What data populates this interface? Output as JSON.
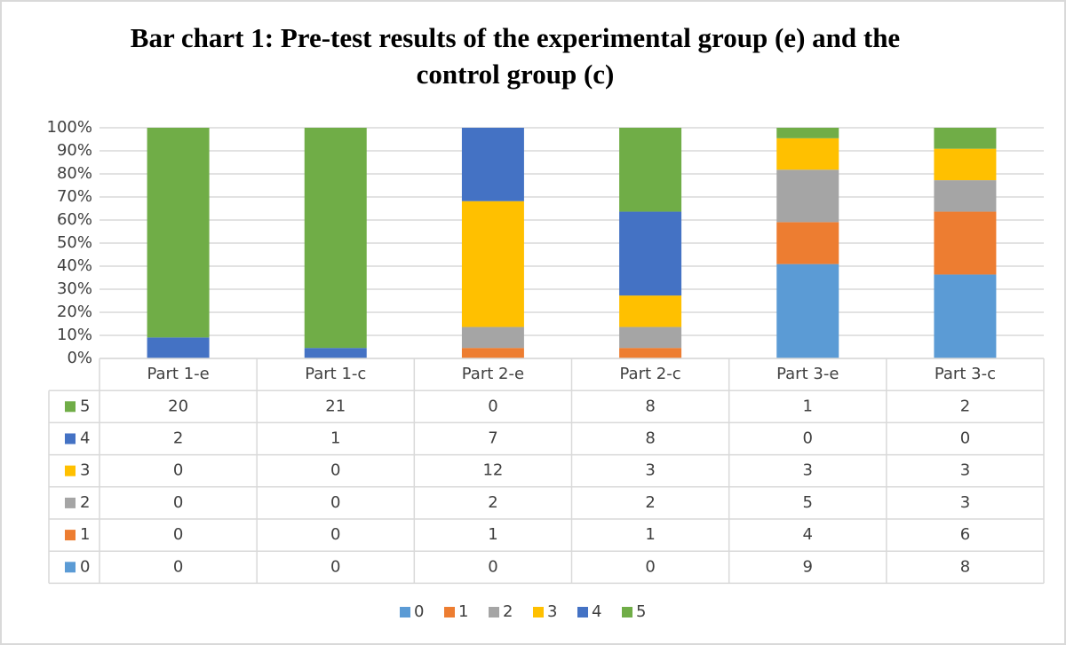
{
  "chart_data": {
    "type": "bar",
    "stacked": "percent",
    "title": "Bar chart 1: Pre-test results of the experimental group (e) and the control group (c)",
    "categories": [
      "Part 1-e",
      "Part 1-c",
      "Part 2-e",
      "Part 2-c",
      "Part 3-e",
      "Part 3-c"
    ],
    "series": [
      {
        "name": "0",
        "color": "#5b9bd5",
        "values": [
          0,
          0,
          0,
          0,
          9,
          8
        ]
      },
      {
        "name": "1",
        "color": "#ed7d31",
        "values": [
          0,
          0,
          1,
          1,
          4,
          6
        ]
      },
      {
        "name": "2",
        "color": "#a5a5a5",
        "values": [
          0,
          0,
          2,
          2,
          5,
          3
        ]
      },
      {
        "name": "3",
        "color": "#ffc000",
        "values": [
          0,
          0,
          12,
          3,
          3,
          3
        ]
      },
      {
        "name": "4",
        "color": "#4472c4",
        "values": [
          2,
          1,
          7,
          8,
          0,
          0
        ]
      },
      {
        "name": "5",
        "color": "#70ad47",
        "values": [
          20,
          21,
          0,
          8,
          1,
          2
        ]
      }
    ],
    "ylim": [
      0,
      100
    ],
    "yticks": [
      {
        "value": 0,
        "label": "0%"
      },
      {
        "value": 10,
        "label": "10%"
      },
      {
        "value": 20,
        "label": "20%"
      },
      {
        "value": 30,
        "label": "30%"
      },
      {
        "value": 40,
        "label": "40%"
      },
      {
        "value": 50,
        "label": "50%"
      },
      {
        "value": 60,
        "label": "60%"
      },
      {
        "value": 70,
        "label": "70%"
      },
      {
        "value": 80,
        "label": "80%"
      },
      {
        "value": 90,
        "label": "90%"
      },
      {
        "value": 100,
        "label": "100%"
      }
    ],
    "grid": true,
    "legend": "bottom",
    "data_table": true
  }
}
